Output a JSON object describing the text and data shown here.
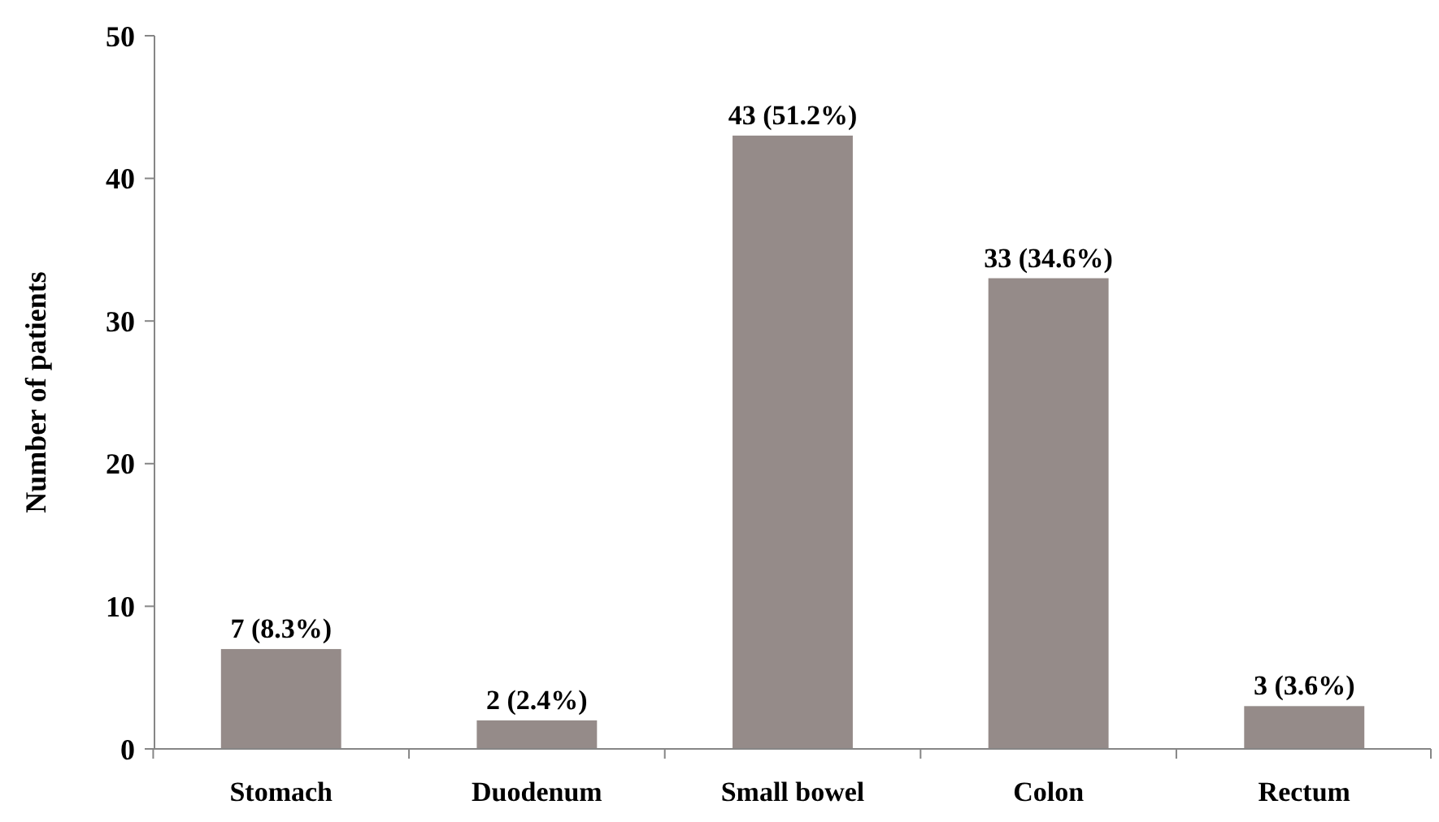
{
  "chart_data": {
    "type": "bar",
    "ylabel": "Number of patients",
    "categories": [
      "Stomach",
      "Duodenum",
      "Small bowel",
      "Colon",
      "Rectum"
    ],
    "values": [
      7,
      2,
      43,
      33,
      3
    ],
    "value_labels": [
      "7 (8.3%)",
      "2 (2.4%)",
      "43 (51.2%)",
      "33 (34.6%)",
      "3 (3.6%)"
    ],
    "color": "#958b89",
    "ylim": [
      0,
      50
    ],
    "yticks": [
      0,
      10,
      20,
      30,
      40,
      50
    ],
    "grid": false
  }
}
